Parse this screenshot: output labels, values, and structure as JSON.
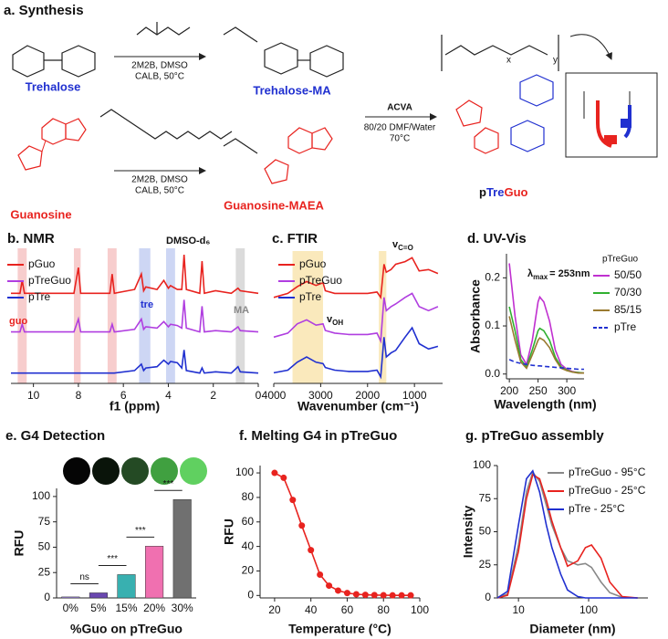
{
  "synthesis": {
    "title": "a. Synthesis",
    "trehalose": "Trehalose",
    "trehalose_ma": "Trehalose-MA",
    "guanosine": "Guanosine",
    "guanosine_maea": "Guanosine-MAEA",
    "step1_reagents": [
      "2M2B, DMSO",
      "CALB, 50°C"
    ],
    "step2_reagents": [
      "2M2B, DMSO",
      "CALB, 50°C"
    ],
    "polymerization": [
      "ACVA",
      "80/20 DMF/Water",
      "70°C"
    ],
    "polymer": {
      "prefix": "p",
      "tre": "Tre",
      "guo": "Guo"
    },
    "x": "x",
    "y": "y"
  },
  "chart_data": [
    {
      "type": "line",
      "title": "b. NMR",
      "xlabel": "f1 (ppm)",
      "xlim": [
        11,
        0
      ],
      "ylim": [
        0,
        10.5
      ],
      "xticks": [
        10,
        8,
        6,
        4,
        2,
        0
      ],
      "x": [
        11,
        10.6,
        10.5,
        10.4,
        8.2,
        8.0,
        7.9,
        6.6,
        6.5,
        6.4,
        5.5,
        5.2,
        5.1,
        5.0,
        4.5,
        4.2,
        4.0,
        3.9,
        3.6,
        3.4,
        3.3,
        3.2,
        2.6,
        2.5,
        2.4,
        1.9,
        1.2,
        0.9,
        0.8,
        0
      ],
      "series": [
        {
          "name": "pGuo",
          "color": "#e8231f",
          "values": [
            7,
            7,
            8,
            7,
            7,
            9,
            7,
            7,
            8.5,
            7,
            7.3,
            8.5,
            7.2,
            7.5,
            7.3,
            8,
            7.4,
            7.6,
            7.3,
            7.3,
            10,
            7.3,
            7,
            9.5,
            7,
            7.2,
            7,
            7.4,
            7.2,
            7
          ]
        },
        {
          "name": "pTreGuo",
          "color": "#b03ee0",
          "values": [
            4,
            4,
            4.6,
            4,
            4,
            5,
            4,
            4,
            4.6,
            4,
            4.2,
            5,
            4.2,
            4.4,
            4.3,
            4.8,
            4.4,
            4.6,
            4.5,
            4.3,
            6.5,
            4.3,
            4,
            6,
            4,
            4.1,
            4,
            4.4,
            4.1,
            4
          ]
        },
        {
          "name": "pTre",
          "color": "#2030d0",
          "values": [
            0.8,
            0.8,
            0.8,
            0.8,
            0.8,
            0.8,
            0.8,
            0.8,
            0.8,
            0.8,
            1,
            1.5,
            1,
            1.2,
            1.3,
            1.8,
            1.5,
            1.7,
            1.6,
            1.2,
            2.6,
            1,
            0.8,
            1.2,
            0.8,
            0.9,
            0.8,
            1.3,
            0.9,
            0.8
          ]
        }
      ],
      "bands": [
        {
          "range": [
            10.7,
            10.3
          ],
          "color": "#f4b8b8"
        },
        {
          "range": [
            8.2,
            7.9
          ],
          "color": "#f4b8b8"
        },
        {
          "range": [
            6.7,
            6.3
          ],
          "color": "#f4b8b8"
        },
        {
          "range": [
            5.3,
            4.8
          ],
          "color": "#b8c4f0"
        },
        {
          "range": [
            4.1,
            3.7
          ],
          "color": "#b8c4f0"
        },
        {
          "range": [
            1.0,
            0.6
          ],
          "color": "#cccccc"
        }
      ],
      "annotations": [
        "guo",
        "tre",
        "MA",
        "DMSO-d₆"
      ]
    },
    {
      "type": "line",
      "title": "c. FTIR",
      "xlabel": "Wavenumber (cm⁻¹)",
      "xlim": [
        4000,
        400
      ],
      "ylim": [
        0,
        10
      ],
      "xticks": [
        4000,
        3000,
        2000,
        1000
      ],
      "x": [
        4000,
        3700,
        3500,
        3300,
        3100,
        2950,
        2900,
        2700,
        2400,
        2000,
        1800,
        1720,
        1650,
        1600,
        1500,
        1400,
        1200,
        1050,
        900,
        700,
        500
      ],
      "series": [
        {
          "name": "pGuo",
          "color": "#e8231f",
          "values": [
            6.5,
            6.8,
            7.3,
            7.7,
            7.4,
            7.6,
            7,
            6.8,
            6.8,
            6.8,
            6.9,
            6.5,
            9,
            8.4,
            8.6,
            9,
            9.2,
            9.5,
            8.5,
            8.6,
            8.3
          ]
        },
        {
          "name": "pTreGuo",
          "color": "#b03ee0",
          "values": [
            3.5,
            3.8,
            4.5,
            4.8,
            4.4,
            4.5,
            4.0,
            3.8,
            3.7,
            3.7,
            3.8,
            3.2,
            6.5,
            5.5,
            5.8,
            6,
            6.5,
            6.8,
            5.8,
            5.5,
            5.8
          ]
        },
        {
          "name": "pTre",
          "color": "#2030d0",
          "values": [
            0.8,
            1,
            1.6,
            2,
            1.6,
            1.5,
            1.2,
            1,
            0.9,
            0.9,
            1,
            0.5,
            3.5,
            2,
            2.3,
            2.5,
            3.5,
            4.2,
            3,
            2.6,
            2.8
          ]
        }
      ],
      "bands": [
        {
          "range": [
            3600,
            2950
          ],
          "color": "#f8e0a0"
        },
        {
          "range": [
            1760,
            1600
          ],
          "color": "#f8e0a0"
        }
      ],
      "annotations": [
        {
          "main": "v",
          "sub": "C=O"
        },
        {
          "main": "v",
          "sub": "OH"
        }
      ]
    },
    {
      "type": "line",
      "title": "d. UV-Vis",
      "xlabel": "Wavelength (nm)",
      "ylabel": "Absorbance",
      "xlim": [
        195,
        330
      ],
      "ylim": [
        -0.01,
        0.25
      ],
      "xticks": [
        200,
        250,
        300
      ],
      "yticks": [
        {
          "value": 0,
          "label": "0.0"
        },
        {
          "value": 0.1,
          "label": "0.1"
        },
        {
          "value": 0.2,
          "label": "0.2"
        }
      ],
      "x": [
        200,
        210,
        220,
        230,
        240,
        250,
        253,
        260,
        270,
        280,
        290,
        300,
        310,
        320,
        330
      ],
      "legend_title": "pTreGuo",
      "series": [
        {
          "name": "50/50",
          "color": "#c030d0",
          "values": [
            0.23,
            0.12,
            0.04,
            0.02,
            0.07,
            0.15,
            0.16,
            0.15,
            0.11,
            0.05,
            0.02,
            0.01,
            0.005,
            0.003,
            0.002
          ]
        },
        {
          "name": "70/30",
          "color": "#30b030",
          "values": [
            0.14,
            0.09,
            0.03,
            0.015,
            0.05,
            0.09,
            0.095,
            0.09,
            0.07,
            0.035,
            0.015,
            0.008,
            0.004,
            0.003,
            0.002
          ]
        },
        {
          "name": "85/15",
          "color": "#9a7a30",
          "values": [
            0.12,
            0.07,
            0.025,
            0.012,
            0.04,
            0.07,
            0.075,
            0.07,
            0.055,
            0.03,
            0.012,
            0.007,
            0.004,
            0.002,
            0.002
          ]
        },
        {
          "name": "pTre",
          "color": "#2030d0",
          "dash": true,
          "values": [
            0.03,
            0.025,
            0.022,
            0.02,
            0.018,
            0.017,
            0.017,
            0.016,
            0.015,
            0.014,
            0.013,
            0.012,
            0.011,
            0.01,
            0.01
          ]
        }
      ],
      "annotations": [
        {
          "main": "λ",
          "sub": "max",
          "rest": "= 253nm"
        }
      ]
    },
    {
      "type": "bar",
      "title": "e. G4 Detection",
      "xlabel": "%Guo on pTreGuo",
      "ylabel": "RFU",
      "categories": [
        "0%",
        "5%",
        "15%",
        "20%",
        "30%"
      ],
      "values": [
        1,
        5,
        23,
        51,
        97
      ],
      "colors": [
        "#a98cf0",
        "#6a48b0",
        "#38b0b0",
        "#f070b0",
        "#707070"
      ],
      "ylim": [
        0,
        108
      ],
      "yticks": [
        0,
        25,
        50,
        75,
        100
      ],
      "significance": [
        "ns",
        "***",
        "***",
        "***"
      ]
    },
    {
      "type": "line",
      "title": "f. Melting G4 in pTreGuo",
      "xlabel": "Temperature (°C)",
      "ylabel": "RFU",
      "markers": true,
      "xlim": [
        12,
        100
      ],
      "ylim": [
        -2,
        106
      ],
      "xticks": [
        20,
        40,
        60,
        80,
        100
      ],
      "yticks": [
        0,
        20,
        40,
        60,
        80,
        100
      ],
      "x": [
        20,
        25,
        30,
        35,
        40,
        45,
        50,
        55,
        60,
        65,
        70,
        75,
        80,
        85,
        90,
        95
      ],
      "series": [
        {
          "name": null,
          "color": "#e8231f",
          "values": [
            100,
            96,
            78,
            57,
            37,
            17,
            8,
            4,
            2,
            1,
            0.5,
            0.3,
            0.2,
            0.1,
            0.1,
            0.1
          ]
        }
      ]
    },
    {
      "type": "line",
      "title": "g. pTreGuo assembly",
      "xlabel": "Diameter (nm)",
      "ylabel": "Intensity",
      "xlog": true,
      "xlim": [
        5,
        700
      ],
      "ylim": [
        0,
        100
      ],
      "xticks": [
        10,
        100
      ],
      "yticks": [
        0,
        25,
        50,
        75,
        100
      ],
      "x": [
        5,
        7,
        10,
        13,
        16,
        20,
        25,
        30,
        40,
        50,
        70,
        90,
        110,
        150,
        200,
        300,
        500
      ],
      "series": [
        {
          "name": "pTreGuo - 95°C",
          "color": "#888888",
          "values": [
            0,
            3,
            40,
            80,
            95,
            88,
            70,
            55,
            38,
            28,
            25,
            26,
            23,
            12,
            4,
            0.5,
            0
          ]
        },
        {
          "name": "pTreGuo - 25°C",
          "color": "#e8231f",
          "values": [
            0,
            2,
            35,
            75,
            93,
            90,
            74,
            58,
            38,
            24,
            28,
            38,
            40,
            30,
            12,
            1,
            0
          ]
        },
        {
          "name": "pTre - 25°C",
          "color": "#2030d0",
          "values": [
            0,
            5,
            55,
            90,
            96,
            80,
            55,
            38,
            18,
            6,
            1,
            0,
            0,
            0,
            0,
            0,
            0
          ]
        }
      ]
    }
  ]
}
